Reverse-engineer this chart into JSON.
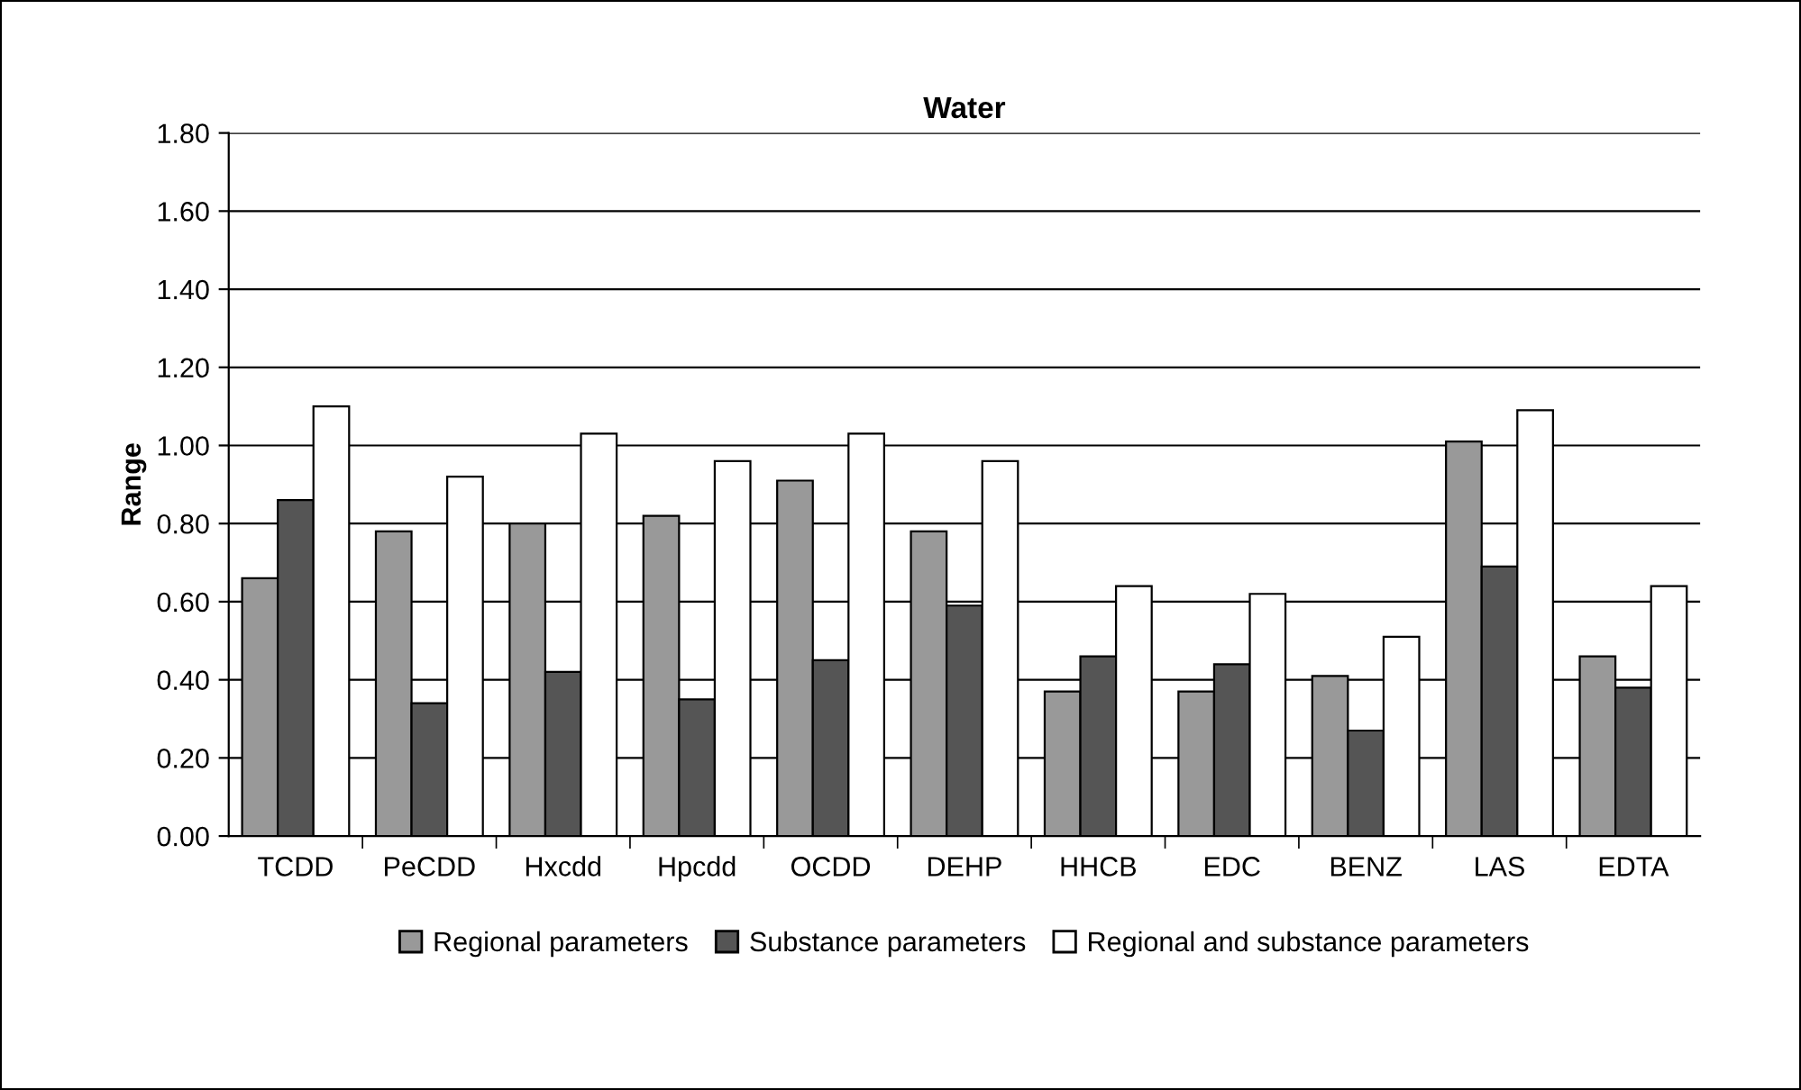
{
  "chart_data": {
    "type": "bar",
    "title": "Water",
    "ylabel": "Range",
    "categories": [
      "TCDD",
      "PeCDD",
      "Hxcdd",
      "Hpcdd",
      "OCDD",
      "DEHP",
      "HHCB",
      "EDC",
      "BENZ",
      "LAS",
      "EDTA"
    ],
    "series": [
      {
        "name": "Regional parameters",
        "color": "#999999",
        "values": [
          0.66,
          0.78,
          0.8,
          0.82,
          0.91,
          0.78,
          0.37,
          0.37,
          0.41,
          1.01,
          0.46
        ]
      },
      {
        "name": "Substance parameters",
        "color": "#555555",
        "values": [
          0.86,
          0.34,
          0.42,
          0.35,
          0.45,
          0.59,
          0.46,
          0.44,
          0.27,
          0.69,
          0.38
        ]
      },
      {
        "name": "Regional and substance parameters",
        "color": "#ffffff",
        "values": [
          1.1,
          0.92,
          1.03,
          0.96,
          1.03,
          0.96,
          0.64,
          0.62,
          0.51,
          1.09,
          0.64
        ]
      }
    ],
    "ylim": [
      0,
      1.8
    ],
    "yticks": [
      {
        "value": 0,
        "label": "0.00"
      },
      {
        "value": 0.2,
        "label": "0.20"
      },
      {
        "value": 0.4,
        "label": "0.40"
      },
      {
        "value": 0.6,
        "label": "0.60"
      },
      {
        "value": 0.8,
        "label": "0.80"
      },
      {
        "value": 1.0,
        "label": "1.00"
      },
      {
        "value": 1.2,
        "label": "1.20"
      },
      {
        "value": 1.4,
        "label": "1.40"
      },
      {
        "value": 1.6,
        "label": "1.60"
      },
      {
        "value": 1.8,
        "label": "1.80"
      }
    ],
    "grid": "y",
    "legend": "bottom"
  }
}
